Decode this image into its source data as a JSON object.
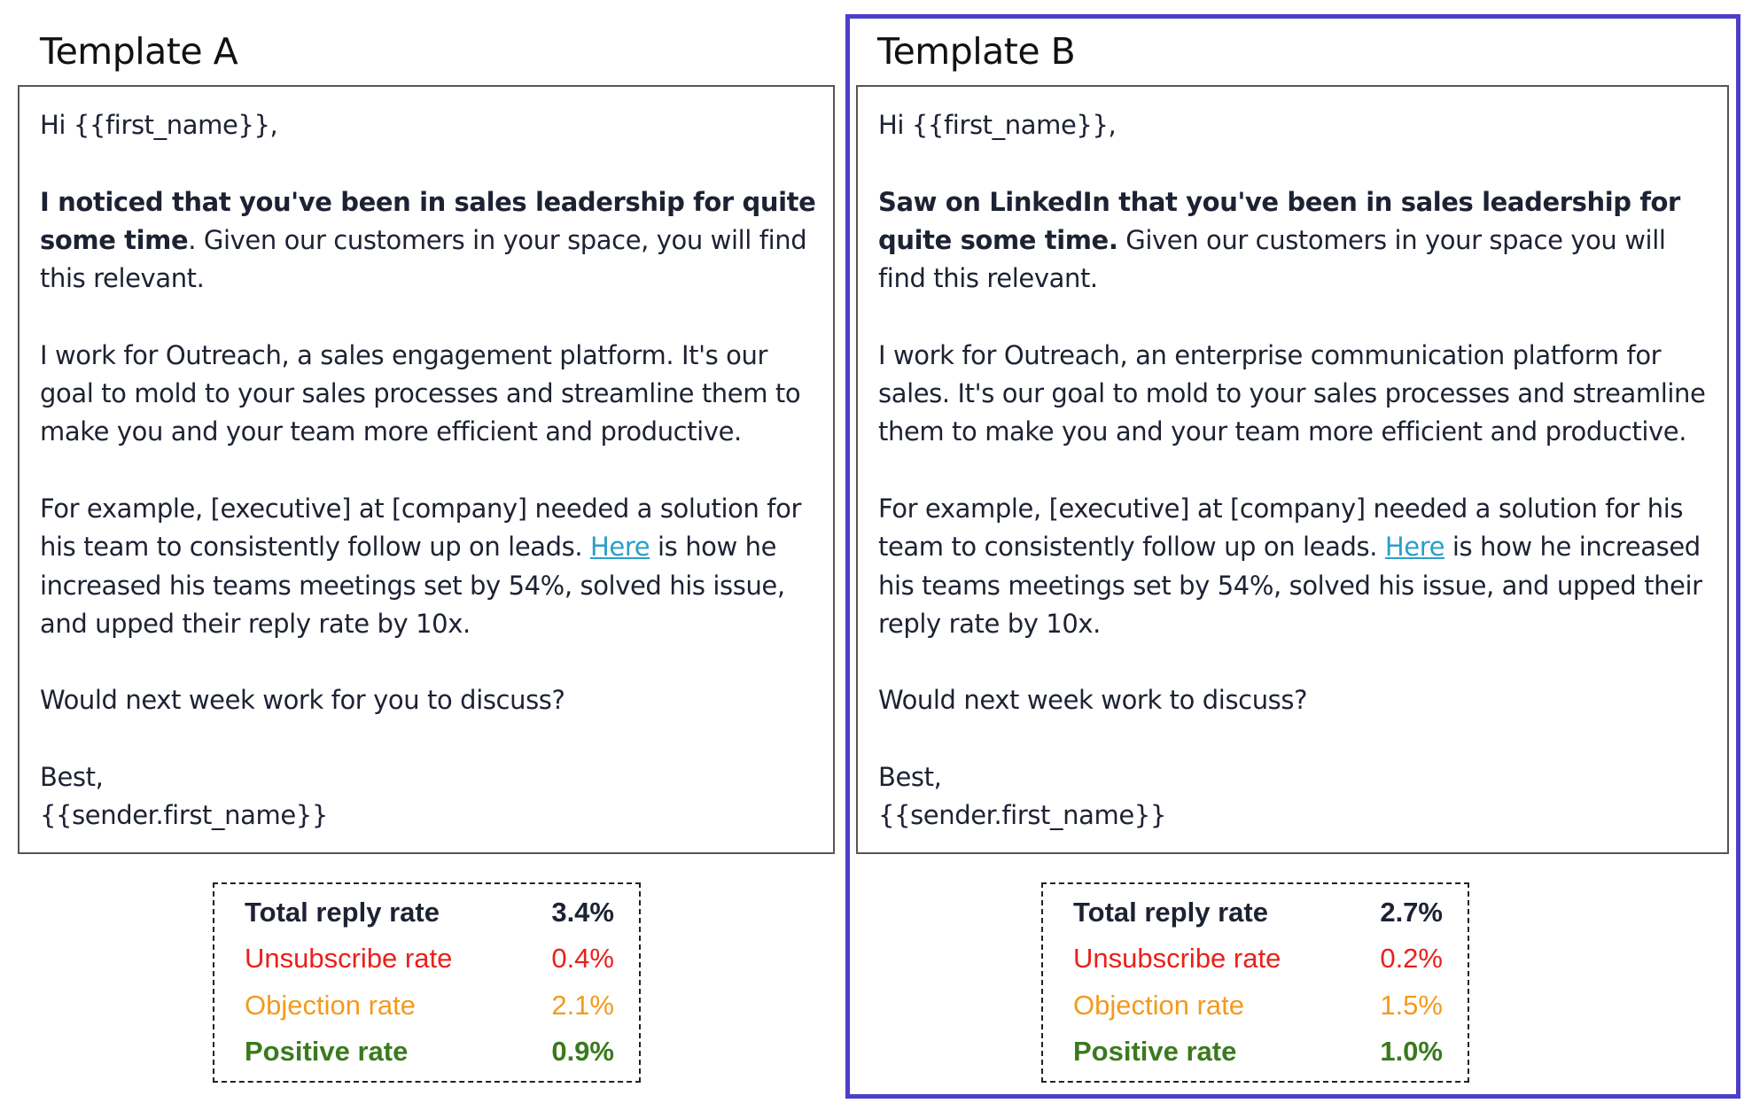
{
  "templates": [
    {
      "title": "Template A",
      "greeting": "Hi {{first_name}},",
      "p1_bold": "I noticed that you've been in sales leadership for quite some time",
      "p1_rest": ". Given our customers in your space, you will find this relevant.",
      "p2": "I work for Outreach, a sales engagement platform. It's our goal to mold to your sales processes and streamline them to make you and your team more efficient and productive.",
      "p3_before": "For example, [executive] at [company] needed a solution for his team to consistently follow up on leads. ",
      "p3_link": "Here",
      "p3_after": " is how he increased his teams meetings set by 54%, solved his issue, and upped their reply rate by 10x.",
      "p4": "Would next week work for you to discuss?",
      "signoff": "Best,",
      "signature": "{{sender.first_name}}",
      "stats": {
        "total_label": "Total reply rate",
        "total_value": "3.4%",
        "unsub_label": "Unsubscribe rate",
        "unsub_value": "0.4%",
        "objection_label": "Objection rate",
        "objection_value": "2.1%",
        "positive_label": "Positive rate",
        "positive_value": "0.9%"
      }
    },
    {
      "title": "Template B",
      "greeting": "Hi {{first_name}},",
      "p1_bold": "Saw on LinkedIn that you've been in sales leadership for quite some time.",
      "p1_rest": " Given our customers in your space you will find this relevant.",
      "p2": "I work for Outreach, an enterprise communication platform for sales. It's our goal to mold to your sales processes and streamline them to make you and your team more efficient and productive.",
      "p3_before": "For example, [executive] at [company] needed a solution for his team to consistently follow up on leads. ",
      "p3_link": "Here",
      "p3_after": " is how he increased his teams meetings set by 54%, solved his issue, and upped their reply rate by 10x.",
      "p4": "Would next week work to discuss?",
      "signoff": "Best,",
      "signature": "{{sender.first_name}}",
      "stats": {
        "total_label": "Total reply rate",
        "total_value": "2.7%",
        "unsub_label": "Unsubscribe rate",
        "unsub_value": "0.2%",
        "objection_label": "Objection rate",
        "objection_value": "1.5%",
        "positive_label": "Positive rate",
        "positive_value": "1.0%"
      }
    }
  ],
  "colors": {
    "total": "#000000",
    "unsubscribe": "#e8211b",
    "objection": "#f39a1e",
    "positive": "#3a7a1e",
    "selection": "#4b3fc9",
    "link": "#2a9fc8"
  }
}
